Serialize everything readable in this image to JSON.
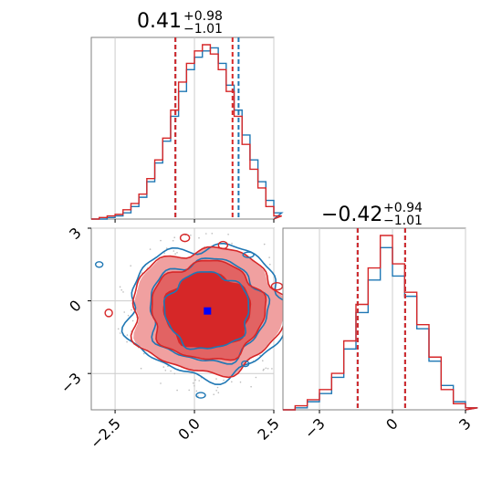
{
  "chart_data": {
    "type": "corner",
    "colors": {
      "series_a": "#1f77b4",
      "series_b": "#d62728",
      "marker": "#0000ff",
      "grid": "#cccccc",
      "frame": "#808080"
    },
    "series": [
      {
        "color": "#1f77b4"
      },
      {
        "color": "#d62728"
      }
    ],
    "titles": {
      "p1": {
        "median": "0.41",
        "plus": "+0.98",
        "minus": "−1.01"
      },
      "p2": {
        "median": "−0.42",
        "plus": "+0.94",
        "minus": "−1.01"
      }
    },
    "x_ticks_p1": [
      "−2.5",
      "0.0",
      "2.5"
    ],
    "x_ticks_p2": [
      "−3",
      "0",
      "3"
    ],
    "y_ticks_p2": [
      "3",
      "0",
      "−3"
    ],
    "ranges": {
      "p1": [
        -3.25,
        2.5
      ],
      "p2": [
        -4.5,
        3.0
      ]
    },
    "quantiles": {
      "p1": {
        "series_a": [
          -0.6,
          0.41,
          1.39
        ],
        "series_b": [
          -0.6,
          0.41,
          1.2
        ]
      },
      "p2": {
        "series_a": [
          -1.43,
          -0.42,
          0.52
        ],
        "series_b": [
          -1.43,
          -0.42,
          0.52
        ]
      }
    },
    "marker_point": {
      "x": 0.41,
      "y": -0.42
    },
    "hist_p1": {
      "bins_x": [
        -3.25,
        -3.0,
        -2.75,
        -2.5,
        -2.25,
        -2.0,
        -1.75,
        -1.5,
        -1.25,
        -1.0,
        -0.75,
        -0.5,
        -0.25,
        0.0,
        0.25,
        0.5,
        0.75,
        1.0,
        1.25,
        1.5,
        1.75,
        2.0,
        2.25,
        2.5
      ],
      "series_a": [
        0,
        0,
        1,
        2,
        4,
        8,
        14,
        24,
        36,
        50,
        66,
        82,
        96,
        104,
        108,
        110,
        100,
        86,
        70,
        54,
        38,
        24,
        12,
        4
      ],
      "series_b": [
        0,
        1,
        2,
        3,
        6,
        10,
        16,
        26,
        38,
        52,
        70,
        88,
        100,
        108,
        112,
        106,
        96,
        82,
        66,
        48,
        32,
        20,
        8,
        2
      ]
    },
    "hist_p2": {
      "bins_x": [
        -4.5,
        -4.0,
        -3.5,
        -3.0,
        -2.5,
        -2.0,
        -1.5,
        -1.0,
        -0.5,
        0.0,
        0.5,
        1.0,
        1.5,
        2.0,
        2.5,
        3.0
      ],
      "series_a": [
        0,
        1,
        4,
        8,
        16,
        30,
        48,
        64,
        80,
        66,
        56,
        40,
        24,
        12,
        4,
        1
      ],
      "series_b": [
        0,
        2,
        5,
        10,
        18,
        34,
        52,
        70,
        86,
        72,
        58,
        42,
        26,
        10,
        3,
        1
      ]
    }
  }
}
